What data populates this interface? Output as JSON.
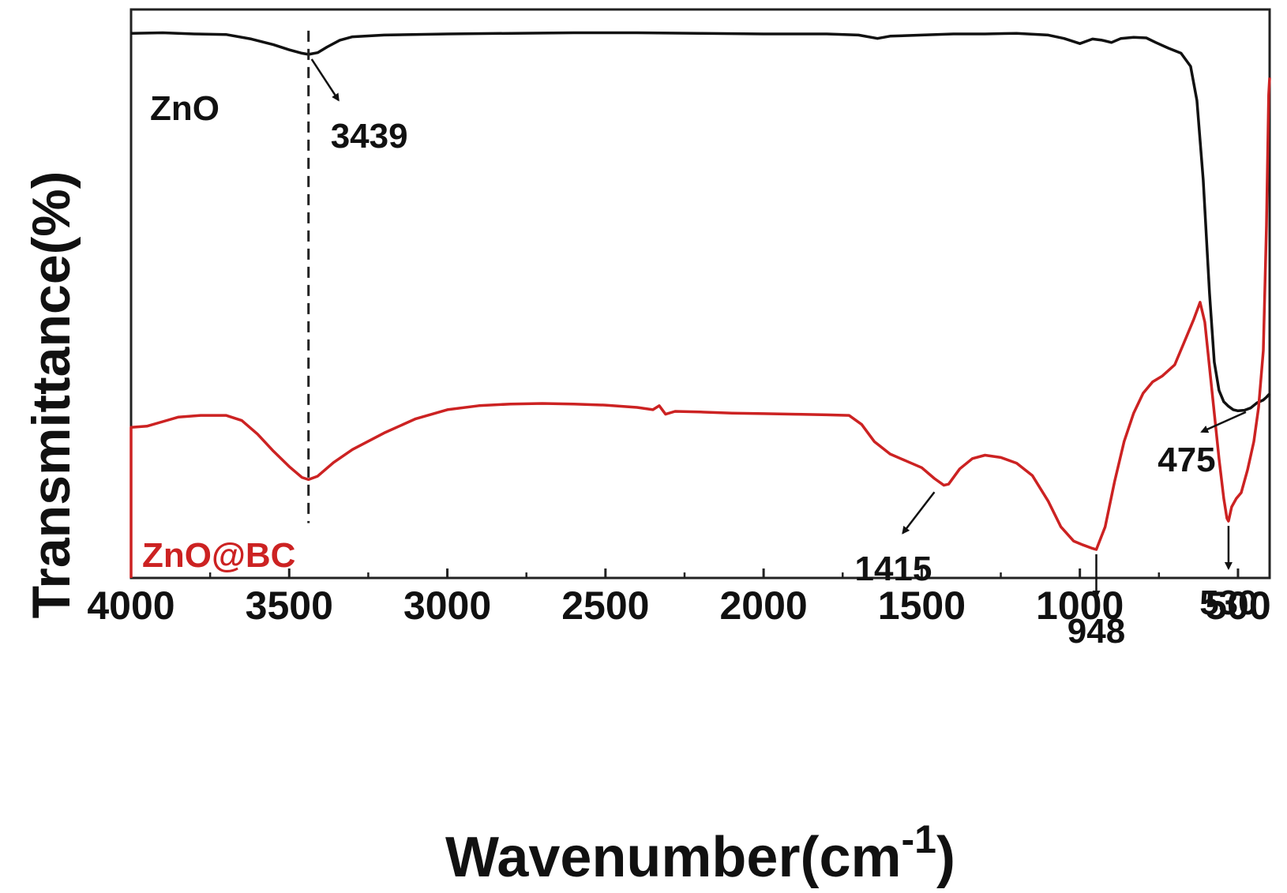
{
  "chart_data": {
    "type": "line",
    "title": "",
    "xlabel": "Wavenumber(cm",
    "xlabel_sup": "-1",
    "xlabel_close": ")",
    "ylabel": "Transmittance(%)",
    "xlim": [
      4000,
      400
    ],
    "x_reversed": true,
    "ylim": [
      0,
      100
    ],
    "grid": false,
    "x_ticks": [
      "4000",
      "3500",
      "3000",
      "2500",
      "2000",
      "1500",
      "1000",
      "500"
    ],
    "x_tick_values": [
      4000,
      3500,
      3000,
      2500,
      2000,
      1500,
      1000,
      500
    ],
    "series": [
      {
        "name": "ZnO",
        "color": "#111111",
        "points": [
          [
            4000,
            95.8
          ],
          [
            3900,
            95.9
          ],
          [
            3800,
            95.7
          ],
          [
            3700,
            95.6
          ],
          [
            3620,
            94.8
          ],
          [
            3550,
            93.8
          ],
          [
            3500,
            92.9
          ],
          [
            3460,
            92.3
          ],
          [
            3439,
            92.1
          ],
          [
            3410,
            92.4
          ],
          [
            3380,
            93.4
          ],
          [
            3340,
            94.6
          ],
          [
            3300,
            95.2
          ],
          [
            3200,
            95.5
          ],
          [
            3000,
            95.7
          ],
          [
            2800,
            95.8
          ],
          [
            2600,
            95.9
          ],
          [
            2400,
            95.9
          ],
          [
            2200,
            95.8
          ],
          [
            2000,
            95.7
          ],
          [
            1800,
            95.7
          ],
          [
            1700,
            95.5
          ],
          [
            1640,
            94.9
          ],
          [
            1600,
            95.3
          ],
          [
            1500,
            95.5
          ],
          [
            1400,
            95.7
          ],
          [
            1300,
            95.7
          ],
          [
            1200,
            95.8
          ],
          [
            1100,
            95.5
          ],
          [
            1050,
            94.9
          ],
          [
            1000,
            94.0
          ],
          [
            960,
            94.8
          ],
          [
            930,
            94.6
          ],
          [
            900,
            94.2
          ],
          [
            870,
            94.9
          ],
          [
            830,
            95.1
          ],
          [
            790,
            95.0
          ],
          [
            760,
            94.2
          ],
          [
            720,
            93.2
          ],
          [
            680,
            92.3
          ],
          [
            650,
            90.0
          ],
          [
            630,
            84.0
          ],
          [
            610,
            70.0
          ],
          [
            590,
            50.0
          ],
          [
            575,
            38.0
          ],
          [
            560,
            33.0
          ],
          [
            545,
            31.0
          ],
          [
            530,
            30.2
          ],
          [
            515,
            29.6
          ],
          [
            500,
            29.4
          ],
          [
            480,
            29.5
          ],
          [
            460,
            29.9
          ],
          [
            440,
            30.8
          ],
          [
            420,
            31.3
          ],
          [
            410,
            31.8
          ],
          [
            400,
            32.4
          ]
        ]
      },
      {
        "name": "ZnO@BC",
        "color": "#cc2222",
        "points": [
          [
            4000,
            26.5
          ],
          [
            3950,
            26.7
          ],
          [
            3900,
            27.5
          ],
          [
            3850,
            28.3
          ],
          [
            3780,
            28.6
          ],
          [
            3700,
            28.6
          ],
          [
            3650,
            27.7
          ],
          [
            3600,
            25.3
          ],
          [
            3550,
            22.3
          ],
          [
            3500,
            19.6
          ],
          [
            3460,
            17.7
          ],
          [
            3439,
            17.3
          ],
          [
            3410,
            17.9
          ],
          [
            3360,
            20.3
          ],
          [
            3300,
            22.6
          ],
          [
            3200,
            25.5
          ],
          [
            3100,
            28.0
          ],
          [
            3000,
            29.6
          ],
          [
            2900,
            30.3
          ],
          [
            2800,
            30.6
          ],
          [
            2700,
            30.7
          ],
          [
            2600,
            30.6
          ],
          [
            2500,
            30.4
          ],
          [
            2400,
            30.0
          ],
          [
            2350,
            29.6
          ],
          [
            2330,
            30.3
          ],
          [
            2310,
            28.8
          ],
          [
            2280,
            29.3
          ],
          [
            2200,
            29.2
          ],
          [
            2100,
            29.0
          ],
          [
            2000,
            28.9
          ],
          [
            1900,
            28.8
          ],
          [
            1800,
            28.7
          ],
          [
            1730,
            28.6
          ],
          [
            1690,
            27.0
          ],
          [
            1650,
            24.0
          ],
          [
            1600,
            21.8
          ],
          [
            1550,
            20.6
          ],
          [
            1500,
            19.4
          ],
          [
            1460,
            17.5
          ],
          [
            1430,
            16.3
          ],
          [
            1415,
            16.5
          ],
          [
            1380,
            19.2
          ],
          [
            1340,
            21.0
          ],
          [
            1300,
            21.6
          ],
          [
            1250,
            21.2
          ],
          [
            1200,
            20.2
          ],
          [
            1150,
            18.0
          ],
          [
            1100,
            13.5
          ],
          [
            1060,
            9.0
          ],
          [
            1020,
            6.5
          ],
          [
            990,
            5.8
          ],
          [
            960,
            5.2
          ],
          [
            948,
            5.0
          ],
          [
            920,
            9.0
          ],
          [
            890,
            17.0
          ],
          [
            860,
            24.0
          ],
          [
            830,
            29.0
          ],
          [
            800,
            32.5
          ],
          [
            770,
            34.5
          ],
          [
            740,
            35.5
          ],
          [
            700,
            37.5
          ],
          [
            670,
            41.5
          ],
          [
            640,
            45.5
          ],
          [
            620,
            48.5
          ],
          [
            605,
            45.0
          ],
          [
            590,
            37.0
          ],
          [
            575,
            29.0
          ],
          [
            560,
            21.0
          ],
          [
            545,
            14.0
          ],
          [
            535,
            10.5
          ],
          [
            530,
            10.0
          ],
          [
            520,
            12.5
          ],
          [
            505,
            14.0
          ],
          [
            490,
            15.0
          ],
          [
            470,
            19.0
          ],
          [
            450,
            24.0
          ],
          [
            435,
            30.0
          ],
          [
            420,
            40.0
          ],
          [
            410,
            62.0
          ],
          [
            403,
            85.0
          ],
          [
            400,
            88.0
          ]
        ]
      }
    ],
    "annotations": [
      {
        "label": "3439",
        "x": 3439,
        "series": "ZnO",
        "kind": "dashed-line-and-arrow"
      },
      {
        "label": "1415",
        "x": 1415,
        "series": "ZnO@BC",
        "kind": "arrow"
      },
      {
        "label": "948",
        "x": 948,
        "series": "ZnO@BC",
        "kind": "arrow"
      },
      {
        "label": "530",
        "x": 530,
        "series": "ZnO@BC",
        "kind": "arrow"
      },
      {
        "label": "475",
        "x": 475,
        "series": "ZnO",
        "kind": "arrow"
      }
    ]
  }
}
